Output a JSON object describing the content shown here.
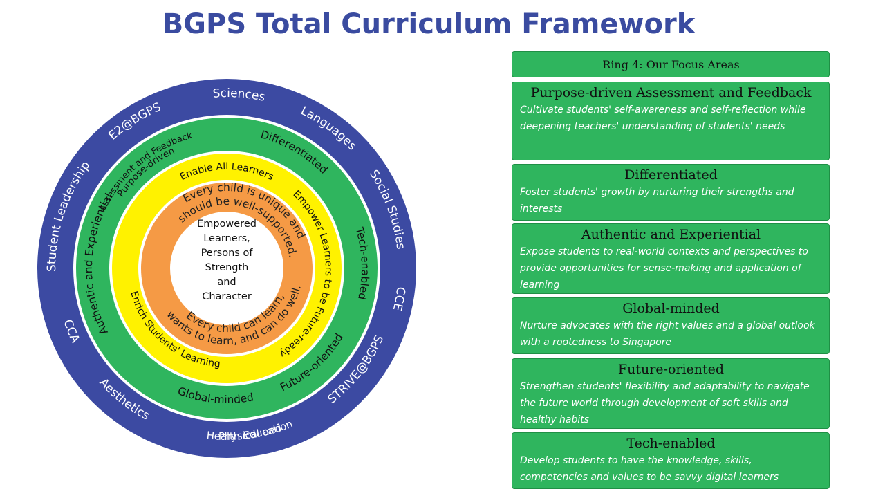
{
  "title": "BGPS Total Curriculum Framework",
  "wheel": {
    "center": [
      "Empowered",
      "Learners,",
      "Persons of",
      "Strength",
      "and",
      "Character"
    ],
    "orange_top": [
      "Every child is unique and",
      "should be well-supported."
    ],
    "orange_bottom": [
      "Every child can learn,",
      "wants to learn, and can do well."
    ],
    "yellow_top": "Enable All Learners",
    "yellow_left": "Enrich Students' Learning",
    "yellow_right": "Empower Learners to be Future-ready",
    "green": {
      "top_left": [
        "Purpose-driven",
        "Assessment and Feedback"
      ],
      "top_right": "Differentiated",
      "right": "Tech-enabled",
      "bottom_right": "Future-oriented",
      "bottom": "Global-minded",
      "left": "Authentic and Experiential"
    },
    "blue": {
      "sciences": "Sciences",
      "languages": "Languages",
      "social": "Social Studies",
      "cce": "CCE",
      "strive": "STRIVE@BGPS",
      "pe": [
        "Physical and",
        "Health Education"
      ],
      "aesthetics": "Aesthetics",
      "cca": "CCA",
      "leadership": "Student Leadership",
      "e2": "E2@BGPS"
    },
    "colors": {
      "blue": "#3c4aa2",
      "green": "#2fb55e",
      "yellow": "#fff200",
      "orange": "#f59a45",
      "center": "#ffffff"
    }
  },
  "panel": {
    "header": "Ring 4: Our Focus Areas",
    "items": [
      {
        "heading": "Purpose-driven Assessment and Feedback",
        "desc": "Cultivate students' self-awareness and self-reflection while deepening teachers' understanding of students' needs"
      },
      {
        "heading": "Differentiated",
        "desc": "Foster students' growth by nurturing their strengths and interests"
      },
      {
        "heading": "Authentic and Experiential",
        "desc": "Expose students to real-world contexts and perspectives to provide opportunities for sense-making and application of learning"
      },
      {
        "heading": "Global-minded",
        "desc": "Nurture advocates with the right values and a global outlook with a rootedness to Singapore"
      },
      {
        "heading": "Future-oriented",
        "desc": "Strengthen students' flexibility and adaptability  to navigate the future world through development of soft skills and healthy habits"
      },
      {
        "heading": "Tech-enabled",
        "desc": "Develop students to have the knowledge, skills, competencies and values to be savvy digital learners"
      }
    ]
  }
}
